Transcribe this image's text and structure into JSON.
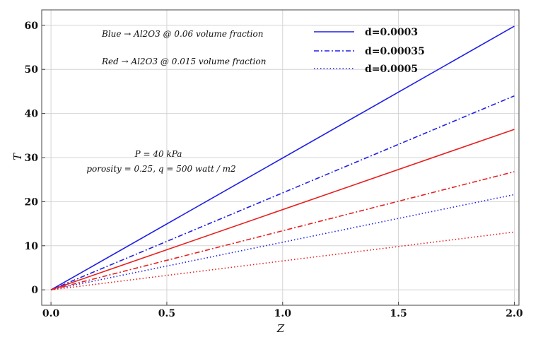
{
  "chart_data": {
    "type": "line",
    "xlabel": "Z",
    "ylabel": "T",
    "xlim": [
      -0.04,
      2.02
    ],
    "ylim": [
      -3.5,
      63.5
    ],
    "xticks": [
      0.0,
      0.5,
      1.0,
      1.5,
      2.0
    ],
    "xtick_labels": [
      "0.0",
      "0.5",
      "1.0",
      "1.5",
      "2.0"
    ],
    "yticks": [
      0,
      10,
      20,
      30,
      40,
      50,
      60
    ],
    "ytick_labels": [
      "0",
      "10",
      "20",
      "30",
      "40",
      "50",
      "60"
    ],
    "grid": true,
    "legend_position": "top-right",
    "annotations": {
      "blue_note": "Blue → Al2O3 @ 0.06 volume fraction",
      "red_note": "Red → Al2O3 @ 0.015 volume fraction",
      "pressure_note": "P = 40 kPa",
      "porosity_note": "porosity = 0.25,  q = 500 watt / m2"
    },
    "legend": [
      {
        "label": "d=0.0003",
        "style": "solid"
      },
      {
        "label": "d=0.00035",
        "style": "dashdot"
      },
      {
        "label": "d=0.0005",
        "style": "dotted"
      }
    ],
    "series": [
      {
        "color": "#1f1fe6",
        "style": "solid",
        "x": [
          0,
          2.0
        ],
        "y": [
          0,
          59.8
        ]
      },
      {
        "color": "#1f1fe6",
        "style": "dashdot",
        "x": [
          0,
          2.0
        ],
        "y": [
          0,
          44.0
        ]
      },
      {
        "color": "#1f1fe6",
        "style": "dotted",
        "x": [
          0,
          2.0
        ],
        "y": [
          0,
          21.6
        ]
      },
      {
        "color": "#e61f1f",
        "style": "solid",
        "x": [
          0,
          2.0
        ],
        "y": [
          0,
          36.4
        ]
      },
      {
        "color": "#e61f1f",
        "style": "dashdot",
        "x": [
          0,
          2.0
        ],
        "y": [
          0,
          26.8
        ]
      },
      {
        "color": "#e61f1f",
        "style": "dotted",
        "x": [
          0,
          2.0
        ],
        "y": [
          0,
          13.1
        ]
      }
    ]
  }
}
